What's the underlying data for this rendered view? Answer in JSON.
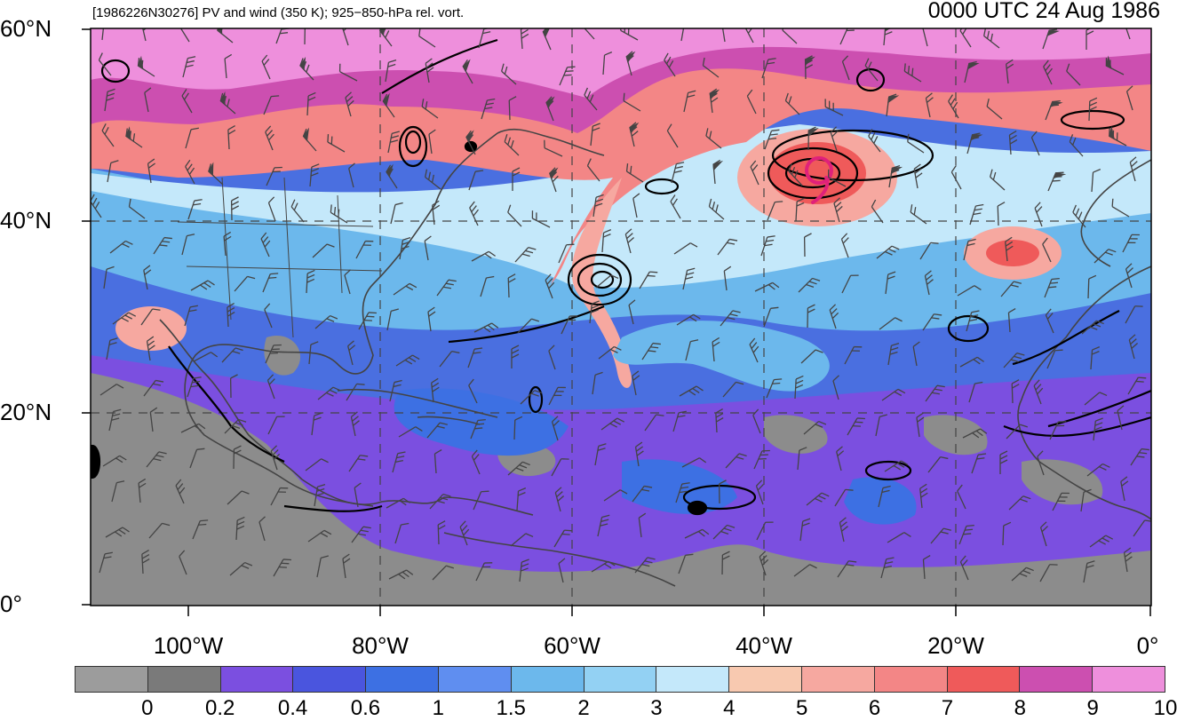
{
  "header": {
    "left_title": "[1986226N30276] PV and wind (350 K); 925−850-hPa rel. vort.",
    "right_title": "0000 UTC 24 Aug 1986"
  },
  "axes": {
    "lat_labels": [
      "60°N",
      "40°N",
      "20°N",
      "0°"
    ],
    "lon_labels": [
      "100°W",
      "80°W",
      "60°W",
      "40°W",
      "20°W",
      "0°"
    ]
  },
  "colorbar": {
    "labels": [
      "0",
      "0.2",
      "0.4",
      "0.6",
      "1",
      "1.5",
      "2",
      "3",
      "4",
      "5",
      "6",
      "7",
      "8",
      "9",
      "10"
    ],
    "colors": [
      "#9c9c9c",
      "#7a7a7a",
      "#7b4fe0",
      "#4a55de",
      "#3d70e3",
      "#5f8ef0",
      "#6cb8ec",
      "#93d1f3",
      "#c4e8fa",
      "#f8c9b0",
      "#f6a8a0",
      "#f38686",
      "#ef5a5a",
      "#cc4fb0",
      "#ee8fdc"
    ]
  },
  "map": {
    "background_color": "#4a6fe0",
    "pv_palette": {
      "low_gray": "#8c8c8c",
      "purple": "#7b4fe0",
      "blue": "#3d70e3",
      "light_blue": "#6cb8ec",
      "pale_blue": "#c4e8fa",
      "salmon": "#f6a8a0",
      "red": "#ef5a5a",
      "magenta": "#cc4fb0",
      "pink": "#ee8fdc"
    },
    "contour_color": "#000000",
    "storm_marker_color": "#e0217a",
    "coast_color": "#444444"
  }
}
